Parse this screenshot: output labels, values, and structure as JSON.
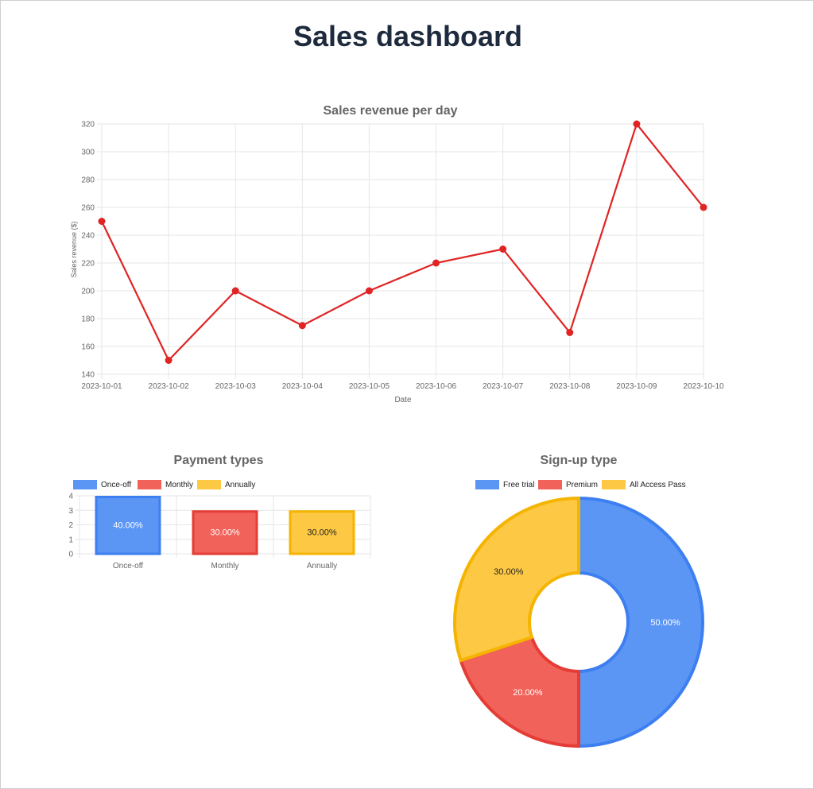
{
  "page": {
    "title": "Sales dashboard"
  },
  "colors": {
    "line": "#e02424",
    "blue": "#5b96f5",
    "blue_border": "#3d7ff0",
    "red": "#f0625a",
    "red_border": "#e53d36",
    "yellow": "#fdc843",
    "yellow_border": "#f5b400"
  },
  "chart_data": [
    {
      "id": "revenue",
      "type": "line",
      "title": "Sales revenue per day",
      "xlabel": "Date",
      "ylabel": "Sales revenue ($)",
      "x": [
        "2023-10-01",
        "2023-10-02",
        "2023-10-03",
        "2023-10-04",
        "2023-10-05",
        "2023-10-06",
        "2023-10-07",
        "2023-10-08",
        "2023-10-09",
        "2023-10-10"
      ],
      "values": [
        250,
        150,
        200,
        175,
        200,
        220,
        230,
        170,
        320,
        260
      ],
      "ylim": [
        140,
        320
      ],
      "yticks": [
        "140",
        "160",
        "180",
        "200",
        "220",
        "240",
        "260",
        "280",
        "300",
        "320"
      ],
      "grid": true,
      "legend": false
    },
    {
      "id": "payment",
      "type": "bar",
      "title": "Payment types",
      "categories": [
        "Once-off",
        "Monthly",
        "Annually"
      ],
      "values": [
        4,
        3,
        3
      ],
      "data_labels": [
        "40.00%",
        "30.00%",
        "30.00%"
      ],
      "ylim": [
        0,
        4
      ],
      "yticks": [
        "0",
        "1",
        "2",
        "3",
        "4"
      ],
      "legend_position": "top",
      "grid": true
    },
    {
      "id": "signup",
      "type": "pie",
      "variant": "doughnut",
      "title": "Sign-up type",
      "categories": [
        "Free trial",
        "Premium",
        "All Access Pass"
      ],
      "values": [
        50,
        20,
        30
      ],
      "data_labels": [
        "50.00%",
        "20.00%",
        "30.00%"
      ],
      "legend_position": "top"
    }
  ]
}
